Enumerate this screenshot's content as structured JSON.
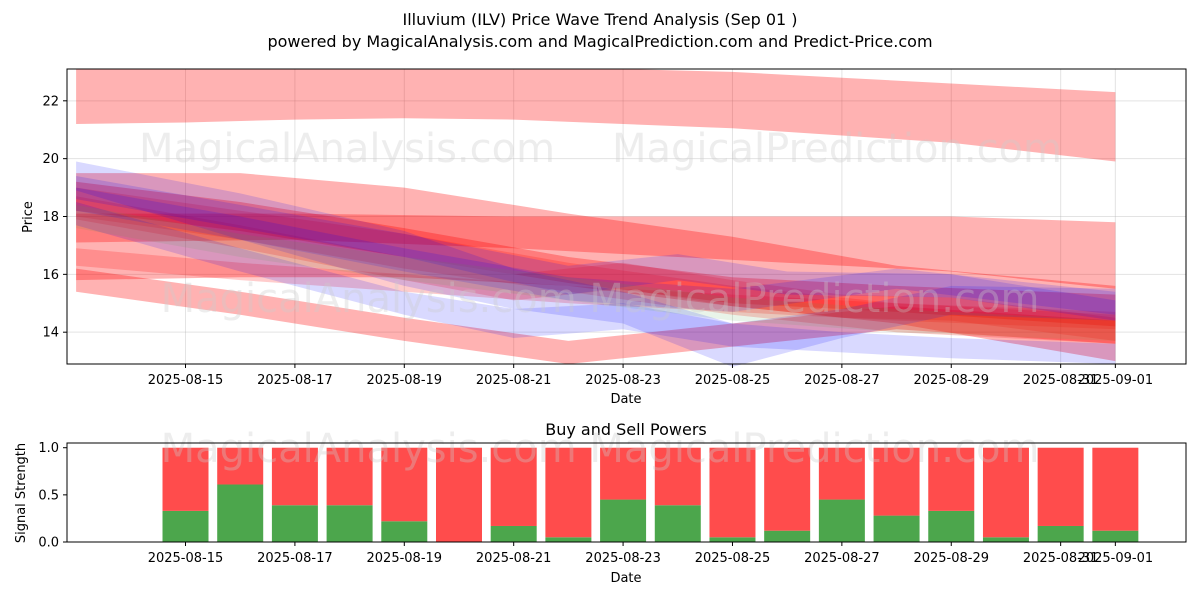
{
  "header": {
    "title": "Illuvium (ILV) Price Wave Trend Analysis (Sep 01 )",
    "subtitle": "powered by MagicalAnalysis.com and MagicalPrediction.com and Predict-Price.com"
  },
  "watermarks": {
    "top": [
      "MagicalAnalysis.com",
      "MagicalPrediction.com"
    ],
    "middle": "MagicalAnalysis.com    MagicalPrediction.com",
    "bottom": "MagicalAnalysis.com    MagicalPrediction.com"
  },
  "colors": {
    "red": "#ff0000",
    "blue": "#0000ff",
    "green": "#4ca64c",
    "sell": "#ff4c4c",
    "buy": "#4ca64c"
  },
  "chart_data": [
    {
      "type": "area",
      "xlabel": "Date",
      "ylabel": "Price",
      "xticks": [
        "2025-08-15",
        "2025-08-17",
        "2025-08-19",
        "2025-08-21",
        "2025-08-23",
        "2025-08-25",
        "2025-08-27",
        "2025-08-29",
        "2025-08-31",
        "2025-09-01"
      ],
      "yticks": [
        14,
        16,
        18,
        20,
        22
      ],
      "xlim": [
        "2025-08-12T20:00",
        "2025-09-02T07:00"
      ],
      "ylim": [
        12.9,
        23.1
      ],
      "grid": true,
      "bands": [
        {
          "color": "red",
          "opacity": 0.3,
          "x": [
            "2025-08-13",
            "2025-08-15",
            "2025-08-17",
            "2025-08-19",
            "2025-08-21",
            "2025-08-23",
            "2025-08-25",
            "2025-08-27",
            "2025-08-29",
            "2025-09-01"
          ],
          "upper": [
            23.1,
            23.1,
            23.1,
            23.1,
            23.1,
            23.1,
            23.0,
            22.8,
            22.6,
            22.3
          ],
          "lower": [
            21.2,
            21.25,
            21.35,
            21.4,
            21.35,
            21.2,
            21.05,
            20.8,
            20.55,
            19.9
          ]
        },
        {
          "color": "red",
          "opacity": 0.3,
          "x": [
            "2025-08-13",
            "2025-08-16",
            "2025-08-19",
            "2025-08-22",
            "2025-08-25",
            "2025-08-28",
            "2025-09-01"
          ],
          "upper": [
            19.5,
            19.5,
            19.0,
            18.1,
            17.3,
            16.3,
            15.6
          ],
          "lower": [
            15.8,
            15.9,
            15.9,
            15.6,
            14.9,
            14.3,
            13.0
          ]
        },
        {
          "color": "red",
          "opacity": 0.3,
          "x": [
            "2025-08-13",
            "2025-08-17",
            "2025-08-21",
            "2025-08-25",
            "2025-08-29",
            "2025-09-01"
          ],
          "upper": [
            18.1,
            18.1,
            18.0,
            18.0,
            18.0,
            17.8
          ],
          "lower": [
            17.1,
            17.2,
            16.9,
            16.5,
            16.1,
            15.5
          ]
        },
        {
          "color": "red",
          "opacity": 0.3,
          "x": [
            "2025-08-13",
            "2025-08-16",
            "2025-08-19",
            "2025-08-22",
            "2025-08-25",
            "2025-08-28",
            "2025-09-01"
          ],
          "upper": [
            19.2,
            18.5,
            17.6,
            16.6,
            15.9,
            15.6,
            15.3
          ],
          "lower": [
            18.2,
            17.5,
            16.6,
            15.7,
            15.0,
            14.7,
            14.2
          ]
        },
        {
          "color": "red",
          "opacity": 0.3,
          "x": [
            "2025-08-13",
            "2025-08-16",
            "2025-08-19",
            "2025-08-22",
            "2025-08-25",
            "2025-08-28",
            "2025-09-01"
          ],
          "upper": [
            16.2,
            15.4,
            14.5,
            13.7,
            14.3,
            14.9,
            14.4
          ],
          "lower": [
            15.4,
            14.6,
            13.7,
            12.9,
            13.5,
            14.1,
            13.6
          ]
        },
        {
          "color": "red",
          "opacity": 0.2,
          "x": [
            "2025-08-13",
            "2025-08-16",
            "2025-08-19",
            "2025-08-22",
            "2025-08-25",
            "2025-08-28",
            "2025-09-01"
          ],
          "upper": [
            19.0,
            18.2,
            17.4,
            16.4,
            15.6,
            15.0,
            14.6
          ],
          "lower": [
            18.0,
            17.2,
            16.2,
            15.4,
            14.6,
            14.0,
            13.6
          ]
        },
        {
          "color": "red",
          "opacity": 0.2,
          "x": [
            "2025-08-13",
            "2025-08-16",
            "2025-08-19",
            "2025-08-21",
            "2025-08-23",
            "2025-08-25",
            "2025-08-27",
            "2025-08-29",
            "2025-09-01"
          ],
          "upper": [
            18.7,
            17.7,
            16.6,
            16.0,
            16.4,
            15.8,
            15.3,
            15.2,
            14.5
          ],
          "lower": [
            17.9,
            16.9,
            15.8,
            15.1,
            15.5,
            14.9,
            14.5,
            14.4,
            13.7
          ]
        },
        {
          "color": "red",
          "opacity": 0.2,
          "x": [
            "2025-08-13",
            "2025-08-16",
            "2025-08-19",
            "2025-08-22",
            "2025-08-25",
            "2025-08-28",
            "2025-09-01"
          ],
          "upper": [
            16.9,
            16.4,
            16.0,
            15.6,
            15.3,
            15.0,
            14.7
          ],
          "lower": [
            16.3,
            15.8,
            15.4,
            15.0,
            14.7,
            14.4,
            14.1
          ]
        },
        {
          "color": "blue",
          "opacity": 0.15,
          "x": [
            "2025-08-13",
            "2025-08-16",
            "2025-08-19",
            "2025-08-21",
            "2025-08-23",
            "2025-08-25",
            "2025-08-27",
            "2025-08-29",
            "2025-09-01"
          ],
          "upper": [
            19.9,
            18.8,
            17.5,
            16.2,
            15.4,
            14.3,
            14.8,
            15.6,
            15.5
          ],
          "lower": [
            18.9,
            17.2,
            15.6,
            14.8,
            14.3,
            12.8,
            13.8,
            14.6,
            14.4
          ]
        },
        {
          "color": "blue",
          "opacity": 0.15,
          "x": [
            "2025-08-13",
            "2025-08-16",
            "2025-08-19",
            "2025-08-21",
            "2025-08-23",
            "2025-08-25",
            "2025-08-27",
            "2025-08-29",
            "2025-09-01"
          ],
          "upper": [
            18.5,
            16.9,
            15.4,
            14.8,
            15.0,
            14.3,
            14.0,
            13.8,
            13.6
          ],
          "lower": [
            17.7,
            16.1,
            14.6,
            13.8,
            14.1,
            13.5,
            13.3,
            13.1,
            12.9
          ]
        },
        {
          "color": "blue",
          "opacity": 0.15,
          "x": [
            "2025-08-13",
            "2025-08-16",
            "2025-08-19",
            "2025-08-22",
            "2025-08-24",
            "2025-08-26",
            "2025-08-29",
            "2025-09-01"
          ],
          "upper": [
            19.4,
            18.4,
            17.4,
            16.3,
            16.7,
            16.1,
            16.0,
            15.1
          ],
          "lower": [
            18.6,
            17.6,
            16.6,
            15.3,
            15.8,
            15.3,
            15.2,
            14.4
          ]
        },
        {
          "color": "blue",
          "opacity": 0.15,
          "x": [
            "2025-08-13",
            "2025-08-16",
            "2025-08-19",
            "2025-08-22",
            "2025-08-25",
            "2025-08-28",
            "2025-09-01"
          ],
          "upper": [
            19.0,
            18.0,
            16.9,
            15.9,
            15.5,
            16.2,
            15.4
          ],
          "lower": [
            18.2,
            17.2,
            16.1,
            15.1,
            14.7,
            15.5,
            14.6
          ]
        },
        {
          "color": "green",
          "opacity": 0.12,
          "x": [
            "2025-08-13",
            "2025-08-16",
            "2025-08-19",
            "2025-08-22",
            "2025-08-25",
            "2025-08-28",
            "2025-09-01"
          ],
          "upper": [
            18.4,
            17.4,
            16.6,
            15.9,
            15.2,
            14.8,
            14.4
          ],
          "lower": [
            17.6,
            16.6,
            15.8,
            15.1,
            14.4,
            14.0,
            13.7
          ]
        }
      ]
    },
    {
      "type": "bar",
      "title": "Buy and Sell Powers",
      "xlabel": "Date",
      "ylabel": "Signal Strength",
      "xticks": [
        "2025-08-15",
        "2025-08-17",
        "2025-08-19",
        "2025-08-21",
        "2025-08-23",
        "2025-08-25",
        "2025-08-27",
        "2025-08-29",
        "2025-08-31",
        "2025-09-01"
      ],
      "yticks": [
        0.0,
        0.5,
        1.0
      ],
      "ylim": [
        0,
        1.05
      ],
      "categories": [
        "2025-08-15",
        "2025-08-16",
        "2025-08-17",
        "2025-08-18",
        "2025-08-19",
        "2025-08-20",
        "2025-08-21",
        "2025-08-22",
        "2025-08-23",
        "2025-08-24",
        "2025-08-25",
        "2025-08-26",
        "2025-08-27",
        "2025-08-28",
        "2025-08-29",
        "2025-08-30",
        "2025-08-31",
        "2025-09-01"
      ],
      "series": [
        {
          "name": "Buy",
          "values": [
            0.33,
            0.61,
            0.39,
            0.39,
            0.22,
            0.0,
            0.17,
            0.05,
            0.45,
            0.39,
            0.05,
            0.12,
            0.45,
            0.28,
            0.33,
            0.05,
            0.17,
            0.12
          ]
        },
        {
          "name": "Sell",
          "values": [
            0.67,
            0.39,
            0.61,
            0.61,
            0.78,
            1.0,
            0.83,
            0.95,
            0.55,
            0.61,
            0.95,
            0.88,
            0.55,
            0.72,
            0.67,
            0.95,
            0.83,
            0.88
          ]
        }
      ]
    }
  ]
}
